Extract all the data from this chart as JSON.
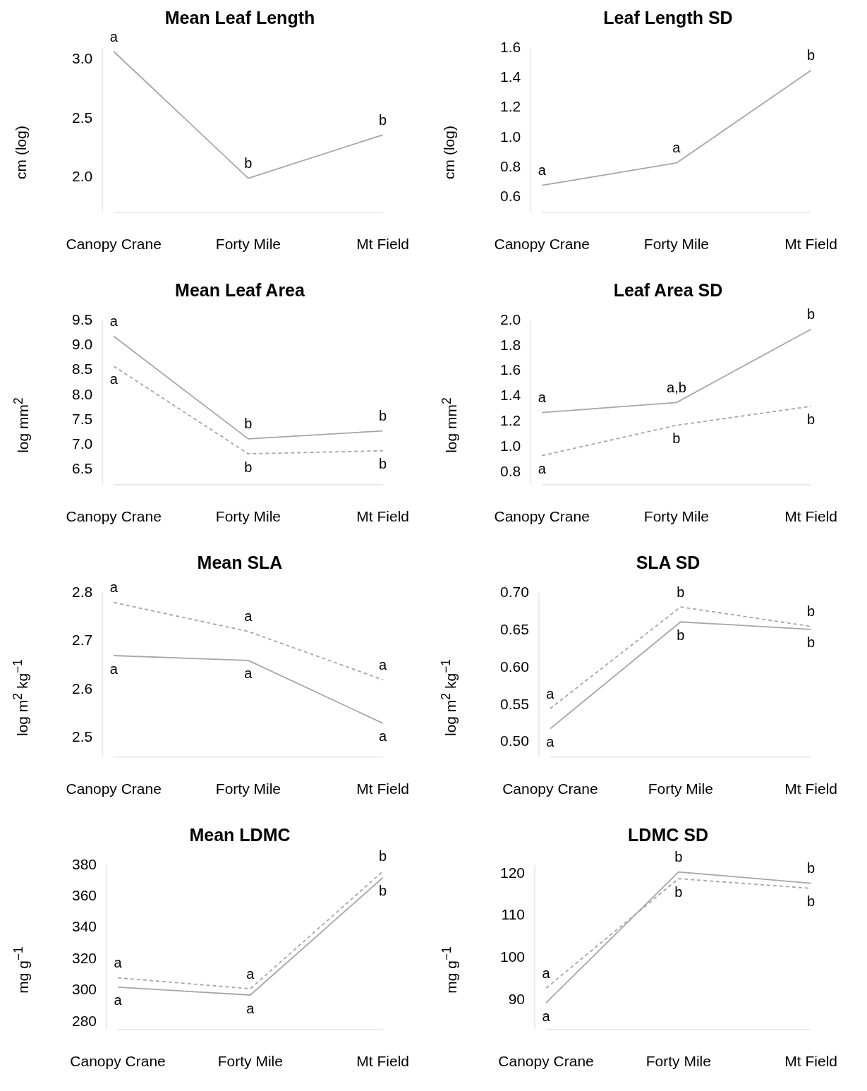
{
  "chart_data": [
    {
      "type": "line",
      "title": "Mean Leaf Length",
      "ylabel": "cm (log)",
      "categories": [
        "Canopy Crane",
        "Forty Mile",
        "Mt Field"
      ],
      "series": [
        {
          "color": "#a6a6a6",
          "line_style": "solid",
          "values": [
            3.07,
            1.99,
            2.36
          ]
        }
      ],
      "ylim": [
        1.7,
        3.1
      ],
      "yticks": [
        {
          "value": 2,
          "label": "2.0"
        },
        2.5,
        {
          "value": 3,
          "label": "3.0"
        }
      ],
      "annotations": [
        {
          "text": "a",
          "x": "Canopy Crane",
          "y": 3.07
        },
        {
          "text": "b",
          "x": "Forty Mile",
          "y": 1.99
        },
        {
          "text": "b",
          "x": "Mt Field",
          "y": 2.36
        }
      ]
    },
    {
      "type": "line",
      "title": "Leaf Length SD",
      "ylabel": "cm (log)",
      "categories": [
        "Canopy Crane",
        "Forty Mile",
        "Mt Field"
      ],
      "series": [
        {
          "color": "#a6a6a6",
          "line_style": "solid",
          "values": [
            0.68,
            0.83,
            1.45
          ]
        }
      ],
      "ylim": [
        0.5,
        1.6
      ],
      "yticks": [
        0.6,
        0.8,
        {
          "value": 1,
          "label": "1.0"
        },
        1.2,
        1.4,
        1.6
      ],
      "annotations": [
        {
          "text": "a",
          "x": "Canopy Crane",
          "y": 0.68
        },
        {
          "text": "a",
          "x": "Forty Mile",
          "y": 0.83
        },
        {
          "text": "b",
          "x": "Mt Field",
          "y": 1.45
        }
      ]
    },
    {
      "type": "line",
      "title": "Mean Leaf Area",
      "ylabel": "log mm$^{2}$",
      "categories": [
        "Canopy Crane",
        "Forty Mile",
        "Mt Field"
      ],
      "series": [
        {
          "color": "#a6a6a6",
          "line_style": "solid",
          "values": [
            9.18,
            7.12,
            7.28
          ]
        },
        {
          "color": "#a6a6a6",
          "line_style": "dashed",
          "values": [
            8.58,
            6.82,
            6.88
          ]
        }
      ],
      "ylim": [
        6.2,
        9.5
      ],
      "yticks": [
        6.5,
        {
          "value": 7,
          "label": "7.0"
        },
        7.5,
        {
          "value": 8,
          "label": "8.0"
        },
        8.5,
        {
          "value": 9,
          "label": "9.0"
        },
        9.5
      ],
      "annotations": [
        {
          "text": "a",
          "x": "Canopy Crane",
          "y": 9.18
        },
        {
          "text": "a",
          "x": "Canopy Crane",
          "y": 8.58
        },
        {
          "text": "b",
          "x": "Forty Mile",
          "y": 7.12
        },
        {
          "text": "b",
          "x": "Forty Mile",
          "y": 6.82
        },
        {
          "text": "b",
          "x": "Mt Field",
          "y": 7.28
        },
        {
          "text": "b",
          "x": "Mt Field",
          "y": 6.88
        }
      ]
    },
    {
      "type": "line",
      "title": "Leaf Area SD",
      "ylabel": "log mm$^{2}$",
      "categories": [
        "Canopy Crane",
        "Forty Mile",
        "Mt Field"
      ],
      "series": [
        {
          "color": "#a6a6a6",
          "line_style": "solid",
          "values": [
            1.27,
            1.35,
            1.93
          ]
        },
        {
          "color": "#a6a6a6",
          "line_style": "dashed",
          "values": [
            0.93,
            1.17,
            1.32
          ]
        }
      ],
      "ylim": [
        0.7,
        2.0
      ],
      "yticks": [
        0.8,
        {
          "value": 1,
          "label": "1.0"
        },
        1.2,
        1.4,
        1.6,
        1.8,
        {
          "value": 2,
          "label": "2.0"
        }
      ],
      "annotations": [
        {
          "text": "a",
          "x": "Canopy Crane",
          "y": 1.27
        },
        {
          "text": "a",
          "x": "Canopy Crane",
          "y": 0.93
        },
        {
          "text": "a,b",
          "x": "Forty Mile",
          "y": 1.35
        },
        {
          "text": "b",
          "x": "Forty Mile",
          "y": 1.17
        },
        {
          "text": "b",
          "x": "Mt Field",
          "y": 1.93
        },
        {
          "text": "b",
          "x": "Mt Field",
          "y": 1.32
        }
      ]
    },
    {
      "type": "line",
      "title": "Mean SLA",
      "ylabel": "log m$^{2}$ kg$^{−1}$",
      "categories": [
        "Canopy Crane",
        "Forty Mile",
        "Mt Field"
      ],
      "series": [
        {
          "color": "#a6a6a6",
          "line_style": "dashed",
          "values": [
            2.78,
            2.72,
            2.62
          ]
        },
        {
          "color": "#a6a6a6",
          "line_style": "solid",
          "values": [
            2.67,
            2.66,
            2.53
          ]
        }
      ],
      "ylim": [
        2.46,
        2.8
      ],
      "yticks": [
        2.5,
        2.6,
        2.7,
        2.8
      ],
      "annotations": [
        {
          "text": "a",
          "x": "Canopy Crane",
          "y": 2.78
        },
        {
          "text": "a",
          "x": "Canopy Crane",
          "y": 2.67
        },
        {
          "text": "a",
          "x": "Forty Mile",
          "y": 2.72
        },
        {
          "text": "a",
          "x": "Forty Mile",
          "y": 2.66
        },
        {
          "text": "a",
          "x": "Mt Field",
          "y": 2.62
        },
        {
          "text": "a",
          "x": "Mt Field",
          "y": 2.53
        }
      ]
    },
    {
      "type": "line",
      "title": "SLA SD",
      "ylabel": "log m$^{2}$ kg$^{−1}$",
      "categories": [
        "Canopy Crane",
        "Forty Mile",
        "Mt Field"
      ],
      "series": [
        {
          "color": "#a6a6a6",
          "line_style": "dashed",
          "values": [
            0.545,
            0.681,
            0.655
          ]
        },
        {
          "color": "#a6a6a6",
          "line_style": "solid",
          "values": [
            0.518,
            0.661,
            0.651
          ]
        }
      ],
      "ylim": [
        0.48,
        0.7
      ],
      "yticks": [
        {
          "value": 0.5,
          "label": "0.50"
        },
        {
          "value": 0.55,
          "label": "0.55"
        },
        {
          "value": 0.6,
          "label": "0.60"
        },
        {
          "value": 0.65,
          "label": "0.65"
        },
        {
          "value": 0.7,
          "label": "0.70"
        }
      ],
      "annotations": [
        {
          "text": "a",
          "x": "Canopy Crane",
          "y": 0.545
        },
        {
          "text": "a",
          "x": "Canopy Crane",
          "y": 0.518
        },
        {
          "text": "b",
          "x": "Forty Mile",
          "y": 0.681
        },
        {
          "text": "b",
          "x": "Forty Mile",
          "y": 0.661
        },
        {
          "text": "b",
          "x": "Mt Field",
          "y": 0.655
        },
        {
          "text": "b",
          "x": "Mt Field",
          "y": 0.651
        }
      ]
    },
    {
      "type": "line",
      "title": "Mean LDMC",
      "ylabel": "mg g$^{−1}$",
      "categories": [
        "Canopy Crane",
        "Forty Mile",
        "Mt Field"
      ],
      "series": [
        {
          "color": "#a6a6a6",
          "line_style": "dashed",
          "values": [
            308,
            301,
            376
          ]
        },
        {
          "color": "#a6a6a6",
          "line_style": "solid",
          "values": [
            302,
            297,
            372
          ]
        }
      ],
      "ylim": [
        275,
        380
      ],
      "yticks": [
        280,
        300,
        320,
        340,
        360,
        380
      ],
      "annotations": [
        {
          "text": "a",
          "x": "Canopy Crane",
          "y": 308
        },
        {
          "text": "a",
          "x": "Canopy Crane",
          "y": 302
        },
        {
          "text": "a",
          "x": "Forty Mile",
          "y": 301
        },
        {
          "text": "a",
          "x": "Forty Mile",
          "y": 297
        },
        {
          "text": "b",
          "x": "Mt Field",
          "y": 376
        },
        {
          "text": "b",
          "x": "Mt Field",
          "y": 372
        }
      ]
    },
    {
      "type": "line",
      "title": "LDMC SD",
      "ylabel": "mg g$^{−1}$",
      "categories": [
        "Canopy Crane",
        "Forty Mile",
        "Mt Field"
      ],
      "series": [
        {
          "color": "#a6a6a6",
          "line_style": "solid",
          "values": [
            89.3,
            120.4,
            117.7
          ]
        },
        {
          "color": "#a6a6a6",
          "line_style": "dashed",
          "values": [
            92.8,
            118.8,
            116.5
          ]
        }
      ],
      "ylim": [
        83,
        122
      ],
      "yticks": [
        90,
        100,
        110,
        120
      ],
      "annotations": [
        {
          "text": "a",
          "x": "Canopy Crane",
          "y": 92.8
        },
        {
          "text": "a",
          "x": "Canopy Crane",
          "y": 89.3
        },
        {
          "text": "b",
          "x": "Forty Mile",
          "y": 120.4
        },
        {
          "text": "b",
          "x": "Forty Mile",
          "y": 118.8
        },
        {
          "text": "b",
          "x": "Mt Field",
          "y": 117.7
        },
        {
          "text": "b",
          "x": "Mt Field",
          "y": 116.5
        }
      ]
    }
  ]
}
